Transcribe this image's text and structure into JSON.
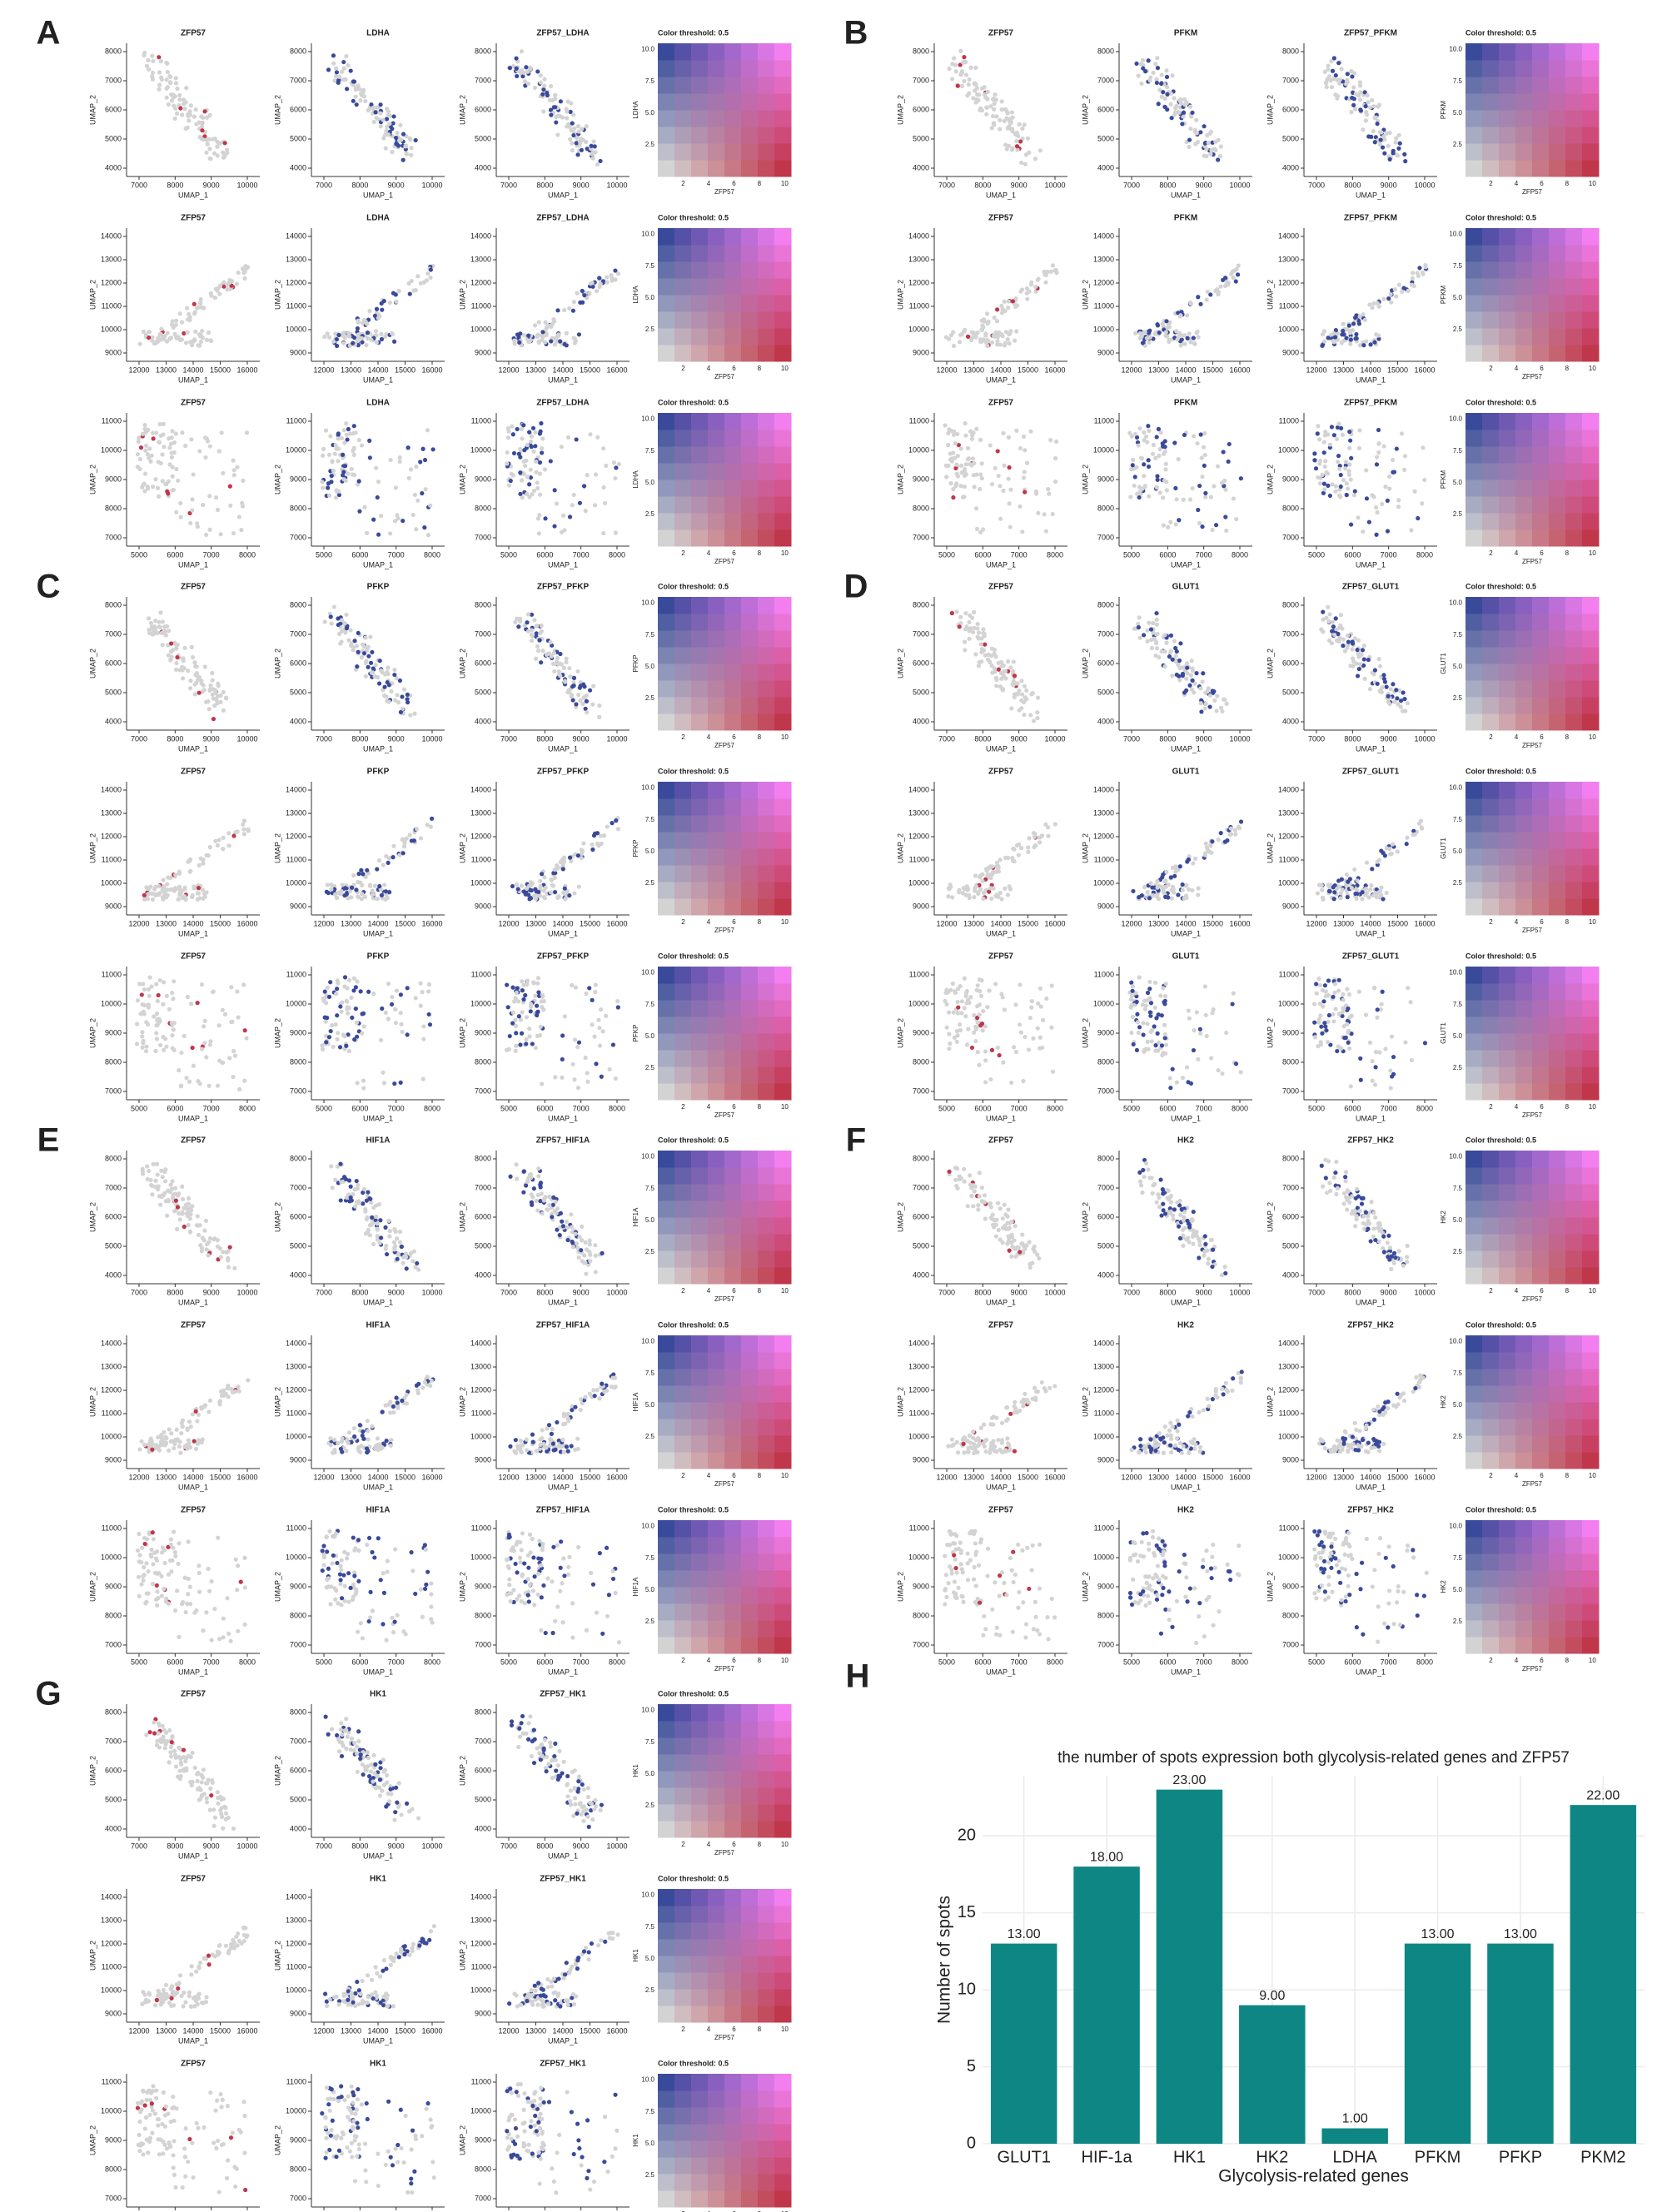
{
  "panels": [
    {
      "label": "A",
      "titles": [
        "ZFP57",
        "LDHA",
        "ZFP57_LDHA"
      ],
      "legend_ylabel": "LDHA"
    },
    {
      "label": "B",
      "titles": [
        "ZFP57",
        "PFKM",
        "ZFP57_PFKM"
      ],
      "legend_ylabel": "PFKM"
    },
    {
      "label": "C",
      "titles": [
        "ZFP57",
        "PFKP",
        "ZFP57_PFKP"
      ],
      "legend_ylabel": "PFKP"
    },
    {
      "label": "D",
      "titles": [
        "ZFP57",
        "GLUT1",
        "ZFP57_GLUT1"
      ],
      "legend_ylabel": "GLUT1"
    },
    {
      "label": "E",
      "titles": [
        "ZFP57",
        "HIF1A",
        "ZFP57_HIF1A"
      ],
      "legend_ylabel": "HIF1A"
    },
    {
      "label": "F",
      "titles": [
        "ZFP57",
        "HK2",
        "ZFP57_HK2"
      ],
      "legend_ylabel": "HK2"
    },
    {
      "label": "G",
      "titles": [
        "ZFP57",
        "HK1",
        "ZFP57_HK1"
      ],
      "legend_ylabel": "HK1"
    }
  ],
  "scatter_axes": {
    "xlabel": "UMAP_1",
    "ylabel": "UMAP_2",
    "rows": [
      {
        "xticks": [
          7000,
          8000,
          9000,
          10000
        ],
        "yticks": [
          4000,
          5000,
          6000,
          7000,
          8000
        ]
      },
      {
        "xticks": [
          12000,
          13000,
          14000,
          15000,
          16000
        ],
        "yticks": [
          9000,
          10000,
          11000,
          12000,
          13000,
          14000
        ]
      },
      {
        "xticks": [
          5000,
          6000,
          7000,
          8000
        ],
        "yticks": [
          7000,
          8000,
          9000,
          10000,
          11000
        ]
      }
    ]
  },
  "legend": {
    "title": "Color threshold: 0.5",
    "xlabel": "ZFP57",
    "xticks": [
      2,
      4,
      6,
      8,
      10
    ],
    "yticks": [
      {
        "value": 2.5,
        "label": "2.5"
      },
      {
        "value": 5,
        "label": "5.0"
      },
      7.5,
      {
        "value": 10,
        "label": "10.0"
      }
    ]
  },
  "chart_label": "H",
  "chart_data": {
    "type": "bar",
    "title": "the number of spots expression both glycolysis-related genes and ZFP57",
    "x_label": "Glycolysis-related genes",
    "y_label": "Number of spots",
    "categories": [
      "GLUT1",
      "HIF-1a",
      "HK1",
      "HK2",
      "LDHA",
      "PFKM",
      "PFKP",
      "PKM2"
    ],
    "values": [
      13,
      18,
      23,
      9,
      1,
      13,
      13,
      22
    ],
    "value_labels": [
      "13.00",
      "18.00",
      "23.00",
      "9.00",
      "1.00",
      "13.00",
      "13.00",
      "22.00"
    ],
    "color": "#0e8784",
    "ylim": [
      0,
      23.9
    ],
    "yticks": [
      0,
      5,
      10,
      15,
      20
    ],
    "grid": true
  }
}
